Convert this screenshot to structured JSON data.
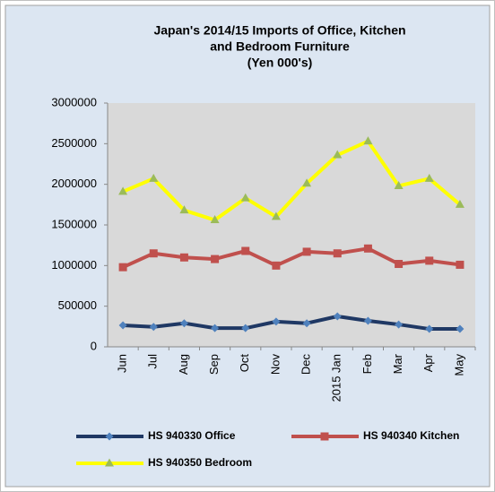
{
  "chart_data": {
    "type": "line",
    "title": [
      "Japan's 2014/15  Imports of Office, Kitchen",
      "and Bedroom Furniture",
      "(Yen 000's)"
    ],
    "categories": [
      "Jun",
      "Jul",
      "Aug",
      "Sep",
      "Oct",
      "Nov",
      "Dec",
      "2015 Jan",
      "Feb",
      "Mar",
      "Apr",
      "May"
    ],
    "series": [
      {
        "name": "HS 940330 Office",
        "color": "#1f3864",
        "marker_color": "#4f81bd",
        "marker": "diamond",
        "values": [
          265000,
          245000,
          290000,
          230000,
          230000,
          310000,
          290000,
          375000,
          320000,
          275000,
          220000,
          220000
        ]
      },
      {
        "name": "HS 940340 Kitchen",
        "color": "#c0504d",
        "marker_color": "#c0504d",
        "marker": "square",
        "values": [
          980000,
          1150000,
          1100000,
          1080000,
          1180000,
          1000000,
          1170000,
          1150000,
          1210000,
          1020000,
          1060000,
          1010000
        ]
      },
      {
        "name": "HS 940350 Bedroom",
        "color": "#ffff00",
        "marker_color": "#9bbb59",
        "marker": "triangle",
        "values": [
          1910000,
          2070000,
          1680000,
          1560000,
          1830000,
          1600000,
          2010000,
          2360000,
          2530000,
          1980000,
          2070000,
          1750000
        ]
      }
    ],
    "ylim": [
      0,
      3000000
    ],
    "yticks": [
      0,
      500000,
      1000000,
      1500000,
      2000000,
      2500000,
      3000000
    ],
    "grid": false,
    "legend": "bottom"
  }
}
